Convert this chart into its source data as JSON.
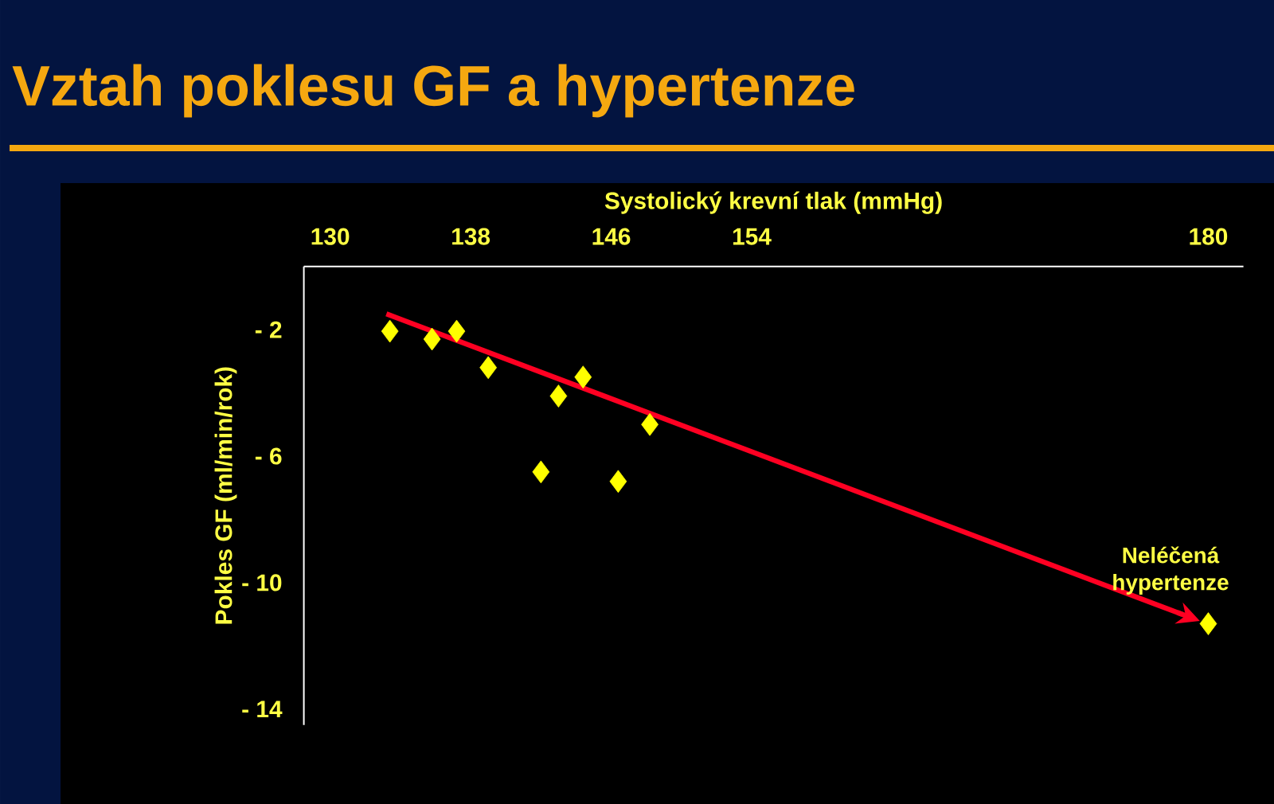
{
  "chart_data": {
    "type": "scatter",
    "title": "Vztah poklesu GF a hypertenze",
    "xlabel": "Systolický krevní tlak (mmHg)",
    "ylabel": "Pokles GF (ml/min/rok)",
    "xlim": [
      128.5,
      182
    ],
    "ylim": [
      -14.5,
      0
    ],
    "xticks": [
      130,
      138,
      146,
      154,
      180
    ],
    "yticks": [
      {
        "value": -2,
        "label": "- 2"
      },
      {
        "value": -6,
        "label": "- 6"
      },
      {
        "value": -10,
        "label": "- 10"
      },
      {
        "value": -14,
        "label": "- 14"
      }
    ],
    "grid": false,
    "series": [
      {
        "marker": "diamond",
        "color": "#ffff00",
        "x": [
          133.4,
          135.8,
          137.2,
          139.0,
          142.0,
          143.0,
          144.4,
          146.4,
          148.2,
          180
        ],
        "values": [
          -2.05,
          -2.3,
          -2.05,
          -3.2,
          -6.5,
          -4.1,
          -3.5,
          -6.8,
          -5.0,
          -11.3
        ]
      },
      {
        "type": "line",
        "color": "#ff0022",
        "x": [
          133.2,
          178.5
        ],
        "values": [
          -1.5,
          -11.0
        ]
      }
    ],
    "annotations": [
      "Neléčená hypertenze"
    ]
  }
}
